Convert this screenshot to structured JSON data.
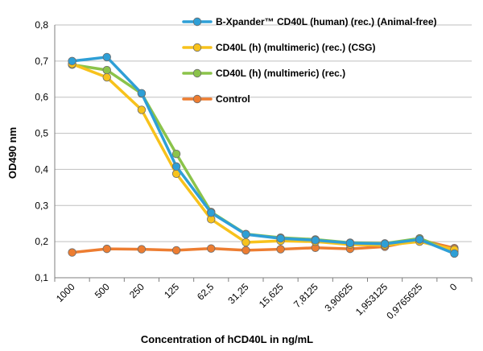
{
  "chart_data": {
    "type": "line",
    "title": "",
    "xlabel": "Concentration of hCD40L in ng/mL",
    "ylabel": "OD490 nm",
    "ylim": [
      0.1,
      0.8
    ],
    "yticks": [
      "0,1",
      "0,2",
      "0,3",
      "0,4",
      "0,5",
      "0,6",
      "0,7",
      "0,8"
    ],
    "categories": [
      "1000",
      "500",
      "250",
      "125",
      "62,5",
      "31,25",
      "15,625",
      "7,8125",
      "3,90625",
      "1,953125",
      "0,9765625",
      "0"
    ],
    "grid": "horizontal",
    "legend_position": "top-right",
    "series": [
      {
        "name": "B-Xpander™ CD40L (human) (rec.) (Animal-free)",
        "color": "#2e9fd6",
        "values": [
          0.7,
          0.711,
          0.611,
          0.408,
          0.28,
          0.22,
          0.209,
          0.204,
          0.196,
          0.194,
          0.206,
          0.167
        ]
      },
      {
        "name": "CD40L (h) (multimeric) (rec.) (CSG)",
        "color": "#f7c21c",
        "values": [
          0.692,
          0.655,
          0.565,
          0.388,
          0.262,
          0.198,
          0.202,
          0.2,
          0.192,
          0.19,
          0.2,
          0.178
        ]
      },
      {
        "name": "CD40L (h) (multimeric) (rec.)",
        "color": "#8bc34a",
        "values": [
          0.69,
          0.675,
          0.61,
          0.443,
          0.282,
          0.221,
          0.211,
          0.206,
          0.197,
          0.195,
          0.209,
          0.172
        ]
      },
      {
        "name": "Control",
        "color": "#ed7d31",
        "values": [
          0.17,
          0.18,
          0.179,
          0.176,
          0.181,
          0.176,
          0.179,
          0.183,
          0.18,
          0.186,
          0.205,
          0.182
        ]
      }
    ]
  }
}
